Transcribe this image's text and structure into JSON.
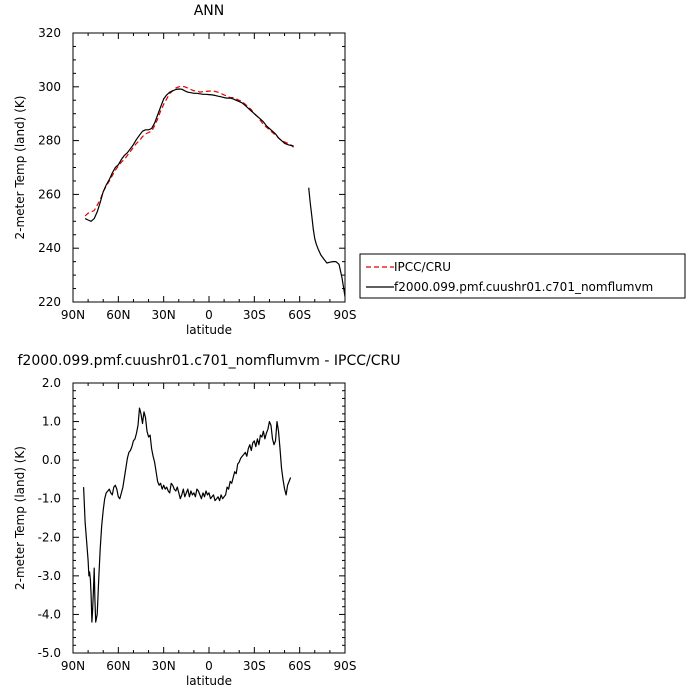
{
  "chart_data": [
    {
      "type": "line",
      "title": "ANN",
      "xlabel": "latitude",
      "ylabel": "2-meter Temp (land) (K)",
      "xlim": [
        90,
        -90
      ],
      "ylim": [
        220,
        320
      ],
      "x_ticks": [
        {
          "value": 90,
          "label": "90N"
        },
        {
          "value": 60,
          "label": "60N"
        },
        {
          "value": 30,
          "label": "30N"
        },
        {
          "value": 0,
          "label": "0"
        },
        {
          "value": -30,
          "label": "30S"
        },
        {
          "value": -60,
          "label": "60S"
        },
        {
          "value": -90,
          "label": "90S"
        }
      ],
      "y_ticks": [
        {
          "value": 220,
          "label": "220"
        },
        {
          "value": 240,
          "label": "240"
        },
        {
          "value": 260,
          "label": "260"
        },
        {
          "value": 280,
          "label": "280"
        },
        {
          "value": 300,
          "label": "300"
        },
        {
          "value": 320,
          "label": "320"
        }
      ],
      "grid": false,
      "legend_position": "right",
      "series": [
        {
          "name": "IPCC/CRU",
          "color": "#e00000",
          "dash": "dashed",
          "x": [
            82,
            80,
            78,
            76,
            74,
            72,
            70,
            68,
            66,
            64,
            62,
            60,
            58,
            56,
            54,
            52,
            50,
            48,
            46,
            44,
            42,
            40,
            38,
            36,
            34,
            32,
            30,
            28,
            26,
            24,
            22,
            20,
            18,
            16,
            14,
            12,
            10,
            8,
            6,
            4,
            2,
            0,
            -2,
            -4,
            -6,
            -8,
            -10,
            -12,
            -14,
            -16,
            -18,
            -20,
            -22,
            -24,
            -26,
            -28,
            -30,
            -32,
            -34,
            -36,
            -38,
            -40,
            -42,
            -44,
            -46,
            -48,
            -50,
            -52,
            -54,
            -56
          ],
          "y": [
            252,
            253,
            253.5,
            254,
            256,
            258,
            261,
            263,
            265,
            267,
            269,
            270.5,
            272,
            273,
            274.5,
            276,
            277.5,
            279,
            280,
            281.5,
            282.5,
            283,
            283.5,
            285.5,
            288,
            291,
            293.5,
            295.5,
            297.5,
            298.5,
            299.5,
            300,
            300.2,
            300,
            299.5,
            299,
            298.5,
            298.5,
            298,
            298.2,
            298.3,
            298.4,
            298.5,
            298.3,
            298,
            297.5,
            297,
            296.5,
            296,
            296,
            295.5,
            295,
            294.5,
            293.5,
            292.5,
            291.5,
            290,
            289,
            287.5,
            286,
            285,
            284,
            283,
            282,
            281,
            280,
            279.5,
            279,
            278.5,
            277.5
          ]
        },
        {
          "name": "f2000.099.pmf.cuushr01.c701_nomflumvm",
          "color": "#000000",
          "dash": "solid",
          "segments": [
            {
              "x": [
                82,
                80,
                78,
                76,
                74,
                72,
                70,
                68,
                66,
                64,
                62,
                60,
                58,
                56,
                54,
                52,
                50,
                48,
                46,
                44,
                42,
                40,
                38,
                36,
                34,
                32,
                30,
                28,
                26,
                24,
                22,
                20,
                18,
                16,
                14,
                12,
                10,
                8,
                6,
                4,
                2,
                0,
                -2,
                -4,
                -6,
                -8,
                -10,
                -12,
                -14,
                -16,
                -18,
                -20,
                -22,
                -24,
                -26,
                -28,
                -30,
                -32,
                -34,
                -36,
                -38,
                -40,
                -42,
                -44,
                -46,
                -48,
                -50,
                -52,
                -54,
                -56
              ],
              "y": [
                251,
                250.5,
                250,
                251,
                253.5,
                257,
                261,
                263.5,
                265.5,
                268,
                270,
                271,
                273,
                274.5,
                275.5,
                277,
                278.5,
                280.5,
                282,
                283.5,
                284,
                284,
                284.5,
                286.5,
                289.5,
                292.5,
                295.5,
                297,
                298,
                298.5,
                299,
                299.2,
                299.1,
                298.5,
                298,
                297.8,
                297.6,
                297.6,
                297.4,
                297.2,
                297.2,
                297.1,
                297,
                296.8,
                296.5,
                296.3,
                296,
                295.8,
                295.8,
                295.5,
                295,
                294.5,
                294,
                293,
                292,
                291,
                290,
                289,
                288,
                287,
                285.5,
                284.5,
                283.5,
                282.5,
                281,
                280,
                279,
                278.5,
                278.2,
                278
              ]
            },
            {
              "x": [
                -66,
                -67,
                -68,
                -69,
                -70,
                -71,
                -72,
                -74,
                -76,
                -78,
                -80,
                -82,
                -84,
                -86,
                -88,
                -90
              ],
              "y": [
                262.5,
                257,
                252,
                247,
                243.5,
                241.5,
                240,
                237.5,
                236,
                234.5,
                234.8,
                235,
                235,
                234,
                229,
                222
              ]
            }
          ]
        }
      ]
    },
    {
      "type": "line",
      "title": "f2000.099.pmf.cuushr01.c701_nomflumvm - IPCC/CRU",
      "xlabel": "latitude",
      "ylabel": "2-meter Temp (land) (K)",
      "xlim": [
        90,
        -90
      ],
      "ylim": [
        -5.0,
        2.0
      ],
      "x_ticks": [
        {
          "value": 90,
          "label": "90N"
        },
        {
          "value": 60,
          "label": "60N"
        },
        {
          "value": 30,
          "label": "30N"
        },
        {
          "value": 0,
          "label": "0"
        },
        {
          "value": -30,
          "label": "30S"
        },
        {
          "value": -60,
          "label": "60S"
        },
        {
          "value": -90,
          "label": "90S"
        }
      ],
      "y_ticks": [
        {
          "value": 2.0,
          "label": "2.0"
        },
        {
          "value": 1.0,
          "label": "1.0"
        },
        {
          "value": 0.0,
          "label": "0.0"
        },
        {
          "value": -1.0,
          "label": "-1.0"
        },
        {
          "value": -2.0,
          "label": "-2.0"
        },
        {
          "value": -3.0,
          "label": "-3.0"
        },
        {
          "value": -4.0,
          "label": "-4.0"
        },
        {
          "value": -5.0,
          "label": "-5.0"
        }
      ],
      "grid": false,
      "series": [
        {
          "color": "#000000",
          "dash": "solid",
          "x": [
            83,
            82,
            81,
            80,
            79.5,
            79,
            78.5,
            78,
            77.5,
            77,
            76.5,
            76,
            75.5,
            75,
            74,
            73,
            72,
            71,
            70,
            69,
            68,
            67,
            66,
            65,
            64,
            63,
            62,
            61,
            60,
            59,
            58,
            57,
            56,
            55,
            54,
            53,
            52,
            51,
            50,
            49,
            48,
            47,
            46,
            45,
            44,
            43,
            42,
            41,
            40,
            39,
            38,
            37,
            36,
            35,
            34,
            33,
            32,
            31,
            30,
            29,
            28,
            27,
            26,
            25,
            24,
            23,
            22,
            21,
            20,
            19,
            18,
            17,
            16,
            15,
            14,
            13,
            12,
            11,
            10,
            9,
            8,
            7,
            6,
            5,
            4,
            3,
            2,
            1,
            0,
            -1,
            -2,
            -3,
            -4,
            -5,
            -6,
            -7,
            -8,
            -9,
            -10,
            -11,
            -12,
            -13,
            -14,
            -15,
            -16,
            -17,
            -18,
            -19,
            -20,
            -21,
            -22,
            -23,
            -24,
            -25,
            -26,
            -27,
            -28,
            -29,
            -30,
            -31,
            -32,
            -33,
            -34,
            -35,
            -36,
            -37,
            -38,
            -39,
            -40,
            -41,
            -42,
            -43,
            -44,
            -45,
            -46,
            -47,
            -48,
            -49,
            -50,
            -51,
            -52,
            -53,
            -54
          ],
          "y": [
            -0.7,
            -1.6,
            -2.1,
            -2.6,
            -3.0,
            -2.9,
            -3.1,
            -3.5,
            -4.2,
            -3.9,
            -3.4,
            -2.8,
            -3.6,
            -4.2,
            -4.0,
            -3.1,
            -2.3,
            -1.7,
            -1.3,
            -1.0,
            -0.85,
            -0.8,
            -0.75,
            -0.85,
            -0.9,
            -0.7,
            -0.65,
            -0.75,
            -0.95,
            -1.0,
            -0.85,
            -0.7,
            -0.45,
            -0.2,
            0.05,
            0.2,
            0.25,
            0.35,
            0.5,
            0.55,
            0.7,
            0.9,
            1.35,
            1.2,
            0.95,
            1.25,
            1.1,
            0.75,
            0.6,
            0.65,
            0.3,
            0.1,
            -0.05,
            -0.3,
            -0.55,
            -0.65,
            -0.6,
            -0.75,
            -0.65,
            -0.75,
            -0.7,
            -0.8,
            -0.85,
            -0.6,
            -0.65,
            -0.75,
            -0.8,
            -0.7,
            -0.85,
            -1.0,
            -0.9,
            -0.75,
            -0.95,
            -0.85,
            -0.75,
            -0.95,
            -0.8,
            -0.9,
            -0.85,
            -0.95,
            -0.75,
            -0.8,
            -0.9,
            -1.0,
            -0.85,
            -0.95,
            -0.8,
            -0.9,
            -0.85,
            -1.0,
            -0.95,
            -0.9,
            -1.05,
            -1.0,
            -0.95,
            -1.05,
            -0.9,
            -1.0,
            -0.95,
            -0.9,
            -0.7,
            -0.75,
            -0.55,
            -0.6,
            -0.45,
            -0.3,
            -0.35,
            -0.1,
            -0.05,
            0.05,
            0.1,
            0.15,
            0.2,
            0.1,
            0.3,
            0.4,
            0.25,
            0.45,
            0.5,
            0.35,
            0.55,
            0.4,
            0.65,
            0.6,
            0.75,
            0.55,
            0.7,
            0.8,
            1.0,
            0.9,
            0.55,
            0.4,
            0.5,
            1.0,
            0.75,
            0.3,
            -0.2,
            -0.5,
            -0.75,
            -0.9,
            -0.65,
            -0.55,
            -0.45
          ]
        }
      ]
    }
  ]
}
